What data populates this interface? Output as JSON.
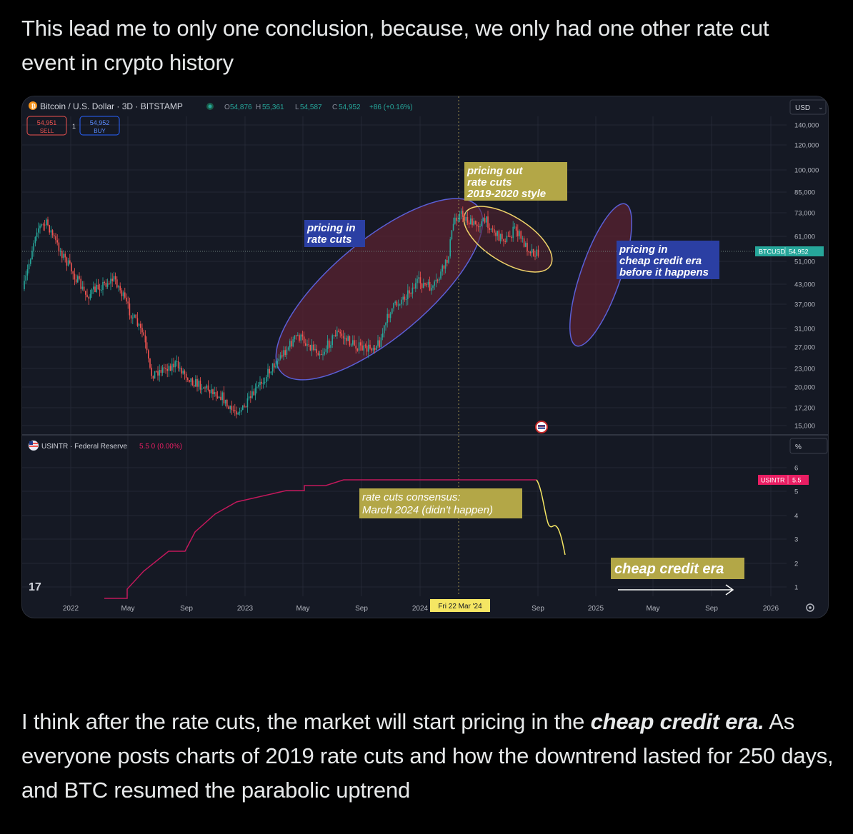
{
  "post": {
    "intro": "This lead me to only one conclusion, because, we only had one other rate cut event in crypto history",
    "outro_before": "I think after the rate cuts, the market will start pricing in the ",
    "outro_emphasis": "cheap credit era.",
    "outro_after": " As everyone posts charts of 2019 rate cuts and how the downtrend lasted for 250 days, and BTC resumed the parabolic uptrend"
  },
  "chart": {
    "header": {
      "symbol_title": "Bitcoin / U.S. Dollar · 3D · BITSTAMP",
      "ohlc": {
        "o_label": "O",
        "o": "54,876",
        "h_label": "H",
        "h": "55,361",
        "l_label": "L",
        "l": "54,587",
        "c_label": "C",
        "c": "54,952",
        "change": "+86 (+0.16%)"
      },
      "sell_price": "54,951",
      "sell_label": "SELL",
      "spread": "1",
      "buy_price": "54,952",
      "buy_label": "BUY",
      "currency": "USD",
      "percent_unit": "%"
    },
    "price_axis": [
      "140,000",
      "120,000",
      "100,000",
      "85,000",
      "73,000",
      "61,000",
      "51,000",
      "43,000",
      "37,000",
      "31,000",
      "27,000",
      "23,000",
      "20,000",
      "17,200",
      "15,000"
    ],
    "price_tag": {
      "label": "BTCUSD",
      "value": "54,952"
    },
    "rate_axis": [
      "6",
      "5",
      "4",
      "3",
      "2",
      "1"
    ],
    "rate_tag": {
      "label": "USINTR",
      "value": "5.5"
    },
    "indicator": {
      "title": "USINTR · Federal Reserve",
      "value": "5.5 0 (0.00%)"
    },
    "time_axis": [
      "2022",
      "May",
      "Sep",
      "2023",
      "May",
      "Sep",
      "2024",
      "Sep",
      "2025",
      "May",
      "Sep",
      "2026"
    ],
    "crosshair_date": "Fri 22 Mar '24",
    "annotations": {
      "pricing_in_1": "pricing in",
      "pricing_in_2": "rate cuts",
      "pricing_out_1": "pricing out",
      "pricing_out_2": "rate cuts",
      "pricing_out_3": "2019-2020 style",
      "cheap_1": "pricing in",
      "cheap_2": "cheap credit era",
      "cheap_3": "before it happens",
      "consensus_1": "rate cuts consensus:",
      "consensus_2": "March 2024 (didn't happen)",
      "cheap_credit_era": "cheap credit era"
    },
    "logo_text": "17",
    "colors": {
      "background": "#151924",
      "up": "#26a69a",
      "down": "#ef5350",
      "ellipse_stroke": "#5b5fd6",
      "ellipse_fill": "#5a2230",
      "yellow_ellipse": "#f0d36a",
      "rate_line": "#c2185b",
      "projection": "#f5e663",
      "note_yellow": "#b3a747",
      "note_blue": "#2b3fa3",
      "price_tag": "#26a69a",
      "rate_tag": "#e91e63"
    }
  }
}
